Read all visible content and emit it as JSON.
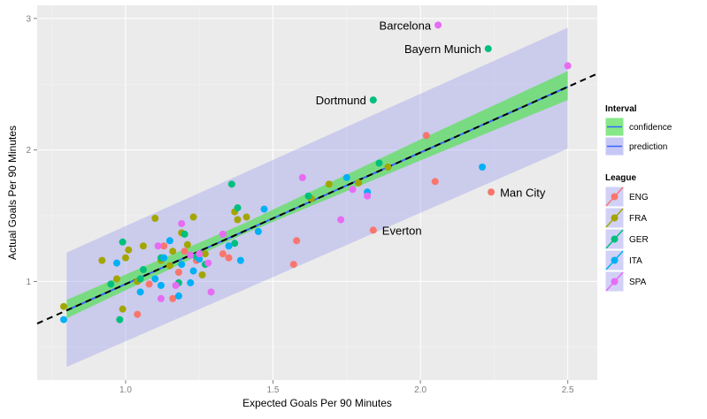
{
  "chart_data": {
    "type": "scatter",
    "xlabel": "Expected Goals Per 90 Minutes",
    "ylabel": "Actual Goals Per 90 Minutes",
    "xlim": [
      0.7,
      2.6
    ],
    "ylim": [
      0.25,
      3.1
    ],
    "x_ticks": [
      "1.0",
      "1.5",
      "2.0",
      "2.5"
    ],
    "x_tick_values": [
      1.0,
      1.5,
      2.0,
      2.5
    ],
    "y_ticks": [
      "1",
      "2",
      "3"
    ],
    "y_tick_values": [
      1,
      2,
      3
    ],
    "grid": true,
    "legend_position": "right",
    "colors": {
      "panel_bg": "#ebebeb",
      "grid_major": "#ffffff",
      "grid_minor": "#f5f5f5",
      "prediction_band": "#9999ee",
      "confidence_band": "#5ee05e",
      "fit_line": "#3366ff",
      "reference_line": "#000000"
    },
    "reference_line": {
      "style": "dashed",
      "intercept": -0.02,
      "slope": 1.0
    },
    "fit": {
      "intercept": -0.02,
      "slope": 1.0,
      "x_range": [
        0.8,
        2.5
      ]
    },
    "prediction_interval": {
      "x": [
        0.8,
        2.5
      ],
      "lower": [
        0.35,
        2.01
      ],
      "upper": [
        1.22,
        2.93
      ]
    },
    "confidence_interval": {
      "x": [
        0.8,
        1.4,
        2.0,
        2.5
      ],
      "lower": [
        0.72,
        1.36,
        1.92,
        2.38
      ],
      "upper": [
        0.86,
        1.44,
        2.08,
        2.6
      ]
    },
    "legend": {
      "interval_title": "Interval",
      "interval_items": [
        {
          "label": "confidence",
          "color": "#5ee05e"
        },
        {
          "label": "prediction",
          "color": "#9999ee"
        }
      ],
      "league_title": "League"
    },
    "series": [
      {
        "name": "ENG",
        "color": "#f8766d",
        "points": [
          [
            1.04,
            0.75
          ],
          [
            1.16,
            0.87
          ],
          [
            1.18,
            1.07
          ],
          [
            1.13,
            1.27
          ],
          [
            1.08,
            0.98
          ],
          [
            1.33,
            1.21
          ],
          [
            1.35,
            1.18
          ],
          [
            1.57,
            1.13
          ],
          [
            1.58,
            1.31
          ],
          [
            2.02,
            2.11
          ],
          [
            2.05,
            1.76
          ],
          [
            2.24,
            1.68
          ],
          [
            1.84,
            1.39
          ],
          [
            1.24,
            1.16
          ],
          [
            1.2,
            1.23
          ]
        ]
      },
      {
        "name": "FRA",
        "color": "#a3a500",
        "points": [
          [
            0.79,
            0.81
          ],
          [
            0.92,
            1.16
          ],
          [
            0.97,
            1.02
          ],
          [
            1.0,
            1.18
          ],
          [
            1.01,
            1.24
          ],
          [
            1.06,
            1.27
          ],
          [
            1.1,
            1.48
          ],
          [
            1.12,
            1.16
          ],
          [
            1.16,
            1.23
          ],
          [
            1.19,
            1.37
          ],
          [
            1.21,
            1.28
          ],
          [
            1.23,
            1.49
          ],
          [
            1.26,
            1.05
          ],
          [
            1.27,
            1.21
          ],
          [
            1.37,
            1.53
          ],
          [
            1.38,
            1.47
          ],
          [
            1.41,
            1.49
          ],
          [
            1.63,
            1.63
          ],
          [
            1.69,
            1.74
          ],
          [
            1.79,
            1.75
          ],
          [
            1.89,
            1.87
          ],
          [
            1.04,
            1.0
          ],
          [
            0.99,
            0.79
          ],
          [
            1.15,
            1.12
          ]
        ]
      },
      {
        "name": "GER",
        "color": "#00bf7d",
        "points": [
          [
            0.95,
            0.98
          ],
          [
            0.99,
            1.3
          ],
          [
            1.06,
            1.09
          ],
          [
            1.12,
            1.18
          ],
          [
            1.18,
            0.99
          ],
          [
            1.2,
            1.36
          ],
          [
            1.27,
            1.13
          ],
          [
            1.36,
            1.74
          ],
          [
            1.37,
            1.29
          ],
          [
            1.38,
            1.56
          ],
          [
            1.62,
            1.65
          ],
          [
            1.86,
            1.9
          ],
          [
            1.84,
            2.38
          ],
          [
            2.23,
            2.77
          ],
          [
            0.98,
            0.71
          ],
          [
            1.05,
            1.02
          ],
          [
            1.24,
            1.19
          ]
        ]
      },
      {
        "name": "ITA",
        "color": "#00b0f6",
        "points": [
          [
            0.79,
            0.71
          ],
          [
            0.97,
            1.14
          ],
          [
            1.05,
            0.92
          ],
          [
            1.1,
            1.02
          ],
          [
            1.13,
            1.18
          ],
          [
            1.15,
            1.31
          ],
          [
            1.18,
            0.89
          ],
          [
            1.19,
            1.13
          ],
          [
            1.22,
            0.99
          ],
          [
            1.23,
            1.08
          ],
          [
            1.25,
            1.17
          ],
          [
            1.39,
            1.16
          ],
          [
            1.45,
            1.38
          ],
          [
            1.47,
            1.55
          ],
          [
            1.75,
            1.79
          ],
          [
            1.82,
            1.68
          ],
          [
            2.21,
            1.87
          ],
          [
            1.35,
            1.27
          ],
          [
            1.12,
            0.97
          ]
        ]
      },
      {
        "name": "SPA",
        "color": "#e76bf3",
        "points": [
          [
            1.11,
            1.27
          ],
          [
            1.12,
            0.87
          ],
          [
            1.17,
            0.97
          ],
          [
            1.19,
            1.44
          ],
          [
            1.22,
            1.2
          ],
          [
            1.25,
            1.21
          ],
          [
            1.28,
            1.14
          ],
          [
            1.29,
            0.92
          ],
          [
            1.33,
            1.36
          ],
          [
            1.6,
            1.79
          ],
          [
            1.73,
            1.47
          ],
          [
            1.77,
            1.7
          ],
          [
            1.82,
            1.65
          ],
          [
            2.06,
            2.95
          ],
          [
            2.5,
            2.64
          ]
        ]
      }
    ],
    "annotations": [
      {
        "text": "Barcelona",
        "x": 2.06,
        "y": 2.95,
        "side": "left"
      },
      {
        "text": "Bayern Munich",
        "x": 2.23,
        "y": 2.77,
        "side": "left"
      },
      {
        "text": "Dortmund",
        "x": 1.84,
        "y": 2.38,
        "side": "left"
      },
      {
        "text": "Man City",
        "x": 2.24,
        "y": 1.68,
        "side": "right"
      },
      {
        "text": "Everton",
        "x": 1.84,
        "y": 1.39,
        "side": "right"
      }
    ]
  }
}
